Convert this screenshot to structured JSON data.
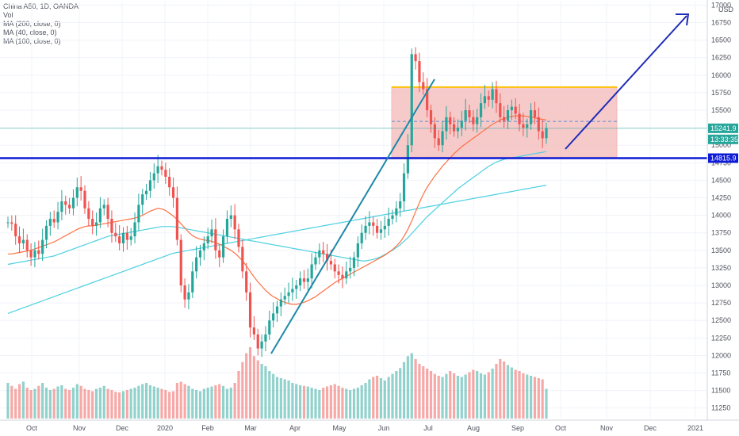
{
  "legend": {
    "symbol_line": "China A50, 1D, OANDA",
    "vol_line": "Vol",
    "ma200_line": "MA (200, close, 0)",
    "ma40_line": "MA (40, close, 0)",
    "ma100_line": "MA (100, close, 0)"
  },
  "chart_data": {
    "type": "candlestick",
    "currency": "USD",
    "y_ticks": [
      17000,
      16750,
      16500,
      16250,
      16000,
      15750,
      15500,
      15250,
      15000,
      14750,
      14500,
      14250,
      14000,
      13750,
      13500,
      13250,
      13000,
      12750,
      12500,
      12250,
      12000,
      11750,
      11500,
      11250
    ],
    "ylim": [
      11100,
      17050
    ],
    "x_labels": [
      "Oct",
      "Nov",
      "Dec",
      "2020",
      "Feb",
      "Mar",
      "Apr",
      "May",
      "Jun",
      "Jul",
      "Aug",
      "Sep",
      "Oct",
      "Nov",
      "Dec",
      "2021"
    ],
    "price_labels": {
      "last_price": "15241.9",
      "countdown": "13:33:35",
      "level": "14815.9"
    },
    "closes": [
      13900,
      13880,
      13700,
      13600,
      13650,
      13500,
      13400,
      13500,
      13450,
      13650,
      13850,
      13950,
      13900,
      14050,
      14200,
      14150,
      14100,
      14250,
      14400,
      14350,
      14100,
      13950,
      13850,
      13900,
      14100,
      14150,
      13950,
      13750,
      13700,
      13600,
      13750,
      13650,
      13700,
      13900,
      14150,
      14300,
      14350,
      14500,
      14600,
      14700,
      14650,
      14550,
      14400,
      14250,
      13650,
      13000,
      12800,
      12900,
      13200,
      13400,
      13500,
      13600,
      13700,
      13800,
      13500,
      13400,
      13700,
      13950,
      14000,
      13800,
      13550,
      13200,
      12900,
      12400,
      12300,
      12100,
      12200,
      12300,
      12500,
      12600,
      12700,
      12800,
      12850,
      12900,
      12950,
      13000,
      13100,
      13050,
      13100,
      13300,
      13400,
      13500,
      13450,
      13350,
      13300,
      13200,
      13150,
      13100,
      13200,
      13250,
      13400,
      13600,
      13750,
      13850,
      13900,
      13850,
      13750,
      13800,
      13850,
      13950,
      14000,
      14100,
      14200,
      14600,
      15000,
      16300,
      16200,
      15900,
      15800,
      15500,
      15300,
      15100,
      15000,
      15200,
      15400,
      15300,
      15200,
      15250,
      15350,
      15500,
      15400,
      15300,
      15400,
      15600,
      15700,
      15650,
      15800,
      15600,
      15400,
      15350,
      15500,
      15550,
      15450,
      15300,
      15250,
      15300,
      15500,
      15400,
      15200,
      15100,
      15241.9
    ],
    "volumes": [
      60,
      55,
      50,
      58,
      62,
      52,
      48,
      50,
      55,
      60,
      52,
      48,
      50,
      54,
      56,
      50,
      48,
      52,
      58,
      55,
      50,
      48,
      46,
      50,
      52,
      55,
      50,
      48,
      45,
      44,
      46,
      48,
      50,
      52,
      55,
      58,
      60,
      56,
      54,
      52,
      50,
      48,
      45,
      46,
      60,
      62,
      58,
      55,
      50,
      48,
      46,
      50,
      52,
      54,
      56,
      58,
      55,
      50,
      52,
      60,
      80,
      95,
      110,
      120,
      105,
      98,
      92,
      88,
      80,
      75,
      70,
      68,
      66,
      64,
      60,
      58,
      56,
      55,
      54,
      52,
      50,
      48,
      52,
      54,
      56,
      58,
      55,
      52,
      50,
      48,
      50,
      52,
      56,
      60,
      66,
      70,
      72,
      68,
      64,
      70,
      75,
      80,
      85,
      95,
      105,
      110,
      100,
      92,
      88,
      84,
      80,
      75,
      72,
      70,
      75,
      80,
      76,
      72,
      70,
      74,
      78,
      82,
      80,
      76,
      74,
      78,
      84,
      92,
      100,
      96,
      90,
      86,
      82,
      80,
      76,
      74,
      72,
      70,
      68,
      66,
      50
    ],
    "ma40": [
      13450,
      13450,
      13460,
      13470,
      13480,
      13490,
      13500,
      13520,
      13540,
      13560,
      13580,
      13600,
      13620,
      13650,
      13680,
      13710,
      13740,
      13770,
      13800,
      13820,
      13840,
      13850,
      13850,
      13860,
      13870,
      13880,
      13890,
      13900,
      13910,
      13920,
      13930,
      13940,
      13950,
      13960,
      13980,
      14000,
      14030,
      14060,
      14080,
      14100,
      14090,
      14070,
      14030,
      13990,
      13940,
      13880,
      13820,
      13760,
      13710,
      13680,
      13660,
      13650,
      13640,
      13630,
      13610,
      13590,
      13560,
      13530,
      13500,
      13460,
      13410,
      13350,
      13280,
      13200,
      13120,
      13050,
      12990,
      12930,
      12880,
      12840,
      12810,
      12780,
      12760,
      12740,
      12730,
      12730,
      12740,
      12760,
      12780,
      12810,
      12840,
      12880,
      12920,
      12960,
      13000,
      13040,
      13070,
      13100,
      13130,
      13160,
      13190,
      13220,
      13250,
      13280,
      13310,
      13340,
      13370,
      13400,
      13430,
      13470,
      13510,
      13560,
      13620,
      13700,
      13800,
      13920,
      14050,
      14180,
      14300,
      14400,
      14480,
      14560,
      14630,
      14700,
      14760,
      14820,
      14880,
      14930,
      14980,
      15020,
      15060,
      15100,
      15140,
      15180,
      15220,
      15260,
      15300,
      15330,
      15360,
      15380,
      15400,
      15410,
      15420,
      15420,
      15420,
      15410,
      15400,
      15390,
      15380,
      15370,
      15360
    ],
    "ma100": [
      13300,
      13310,
      13320,
      13330,
      13340,
      13350,
      13360,
      13370,
      13380,
      13390,
      13400,
      13410,
      13420,
      13440,
      13460,
      13480,
      13500,
      13520,
      13540,
      13560,
      13580,
      13600,
      13620,
      13640,
      13660,
      13680,
      13700,
      13710,
      13720,
      13730,
      13740,
      13750,
      13760,
      13770,
      13780,
      13790,
      13800,
      13810,
      13820,
      13830,
      13840,
      13840,
      13840,
      13840,
      13830,
      13820,
      13810,
      13800,
      13790,
      13780,
      13770,
      13760,
      13750,
      13740,
      13730,
      13720,
      13710,
      13700,
      13690,
      13680,
      13670,
      13660,
      13650,
      13640,
      13630,
      13620,
      13610,
      13600,
      13590,
      13580,
      13570,
      13560,
      13550,
      13540,
      13530,
      13520,
      13510,
      13500,
      13490,
      13480,
      13470,
      13460,
      13450,
      13440,
      13430,
      13420,
      13410,
      13400,
      13390,
      13380,
      13370,
      13360,
      13350,
      13350,
      13360,
      13370,
      13390,
      13410,
      13440,
      13470,
      13500,
      13540,
      13580,
      13630,
      13680,
      13740,
      13800,
      13860,
      13920,
      13980,
      14030,
      14080,
      14130,
      14180,
      14230,
      14280,
      14330,
      14380,
      14420,
      14460,
      14500,
      14540,
      14580,
      14620,
      14660,
      14700,
      14730,
      14760,
      14780,
      14800,
      14810,
      14820,
      14830,
      14840,
      14850,
      14860,
      14870,
      14880,
      14890,
      14900,
      14910
    ],
    "ma200": [
      12600,
      12620,
      12640,
      12660,
      12680,
      12700,
      12720,
      12740,
      12760,
      12780,
      12800,
      12820,
      12840,
      12860,
      12880,
      12900,
      12920,
      12940,
      12960,
      12980,
      13000,
      13020,
      13040,
      13060,
      13080,
      13100,
      13120,
      13140,
      13160,
      13180,
      13200,
      13220,
      13240,
      13260,
      13280,
      13300,
      13320,
      13340,
      13360,
      13380,
      13400,
      13420,
      13440,
      13460,
      13470,
      13480,
      13490,
      13500,
      13510,
      13520,
      13530,
      13540,
      13550,
      13560,
      13570,
      13580,
      13590,
      13600,
      13610,
      13620,
      13630,
      13640,
      13650,
      13660,
      13670,
      13680,
      13690,
      13700,
      13710,
      13720,
      13730,
      13740,
      13750,
      13760,
      13770,
      13780,
      13790,
      13800,
      13810,
      13820,
      13830,
      13840,
      13850,
      13860,
      13870,
      13880,
      13890,
      13900,
      13910,
      13920,
      13930,
      13940,
      13950,
      13960,
      13970,
      13980,
      13990,
      14000,
      14010,
      14020,
      14030,
      14040,
      14050,
      14060,
      14070,
      14080,
      14090,
      14100,
      14110,
      14120,
      14130,
      14140,
      14150,
      14160,
      14170,
      14180,
      14190,
      14200,
      14210,
      14220,
      14230,
      14240,
      14250,
      14260,
      14270,
      14280,
      14290,
      14300,
      14310,
      14320,
      14330,
      14340,
      14350,
      14360,
      14370,
      14380,
      14390,
      14400,
      14410,
      14420,
      14430
    ],
    "annotations": {
      "horizontal_level": 14815.9,
      "rectangle": {
        "top": 15830,
        "bottom": 14830
      },
      "rectangle_top_line": 15830,
      "rectangle_mid_dashed": 15340,
      "last_price_line": 15241.9
    },
    "colors": {
      "up": "#26a69a",
      "down": "#ef5350",
      "ma200": "#2196f3",
      "ma40": "#ff7043",
      "ma100": "#4dd0e1",
      "level": "#0d1bd6",
      "rect_fill": "#f4b8b8",
      "rect_border": "#ffc107",
      "arrow": "#1e2bb8",
      "trend": "#1e88a8",
      "last_price_bg": "#26a69a",
      "level_bg": "#0d1bd6"
    }
  }
}
